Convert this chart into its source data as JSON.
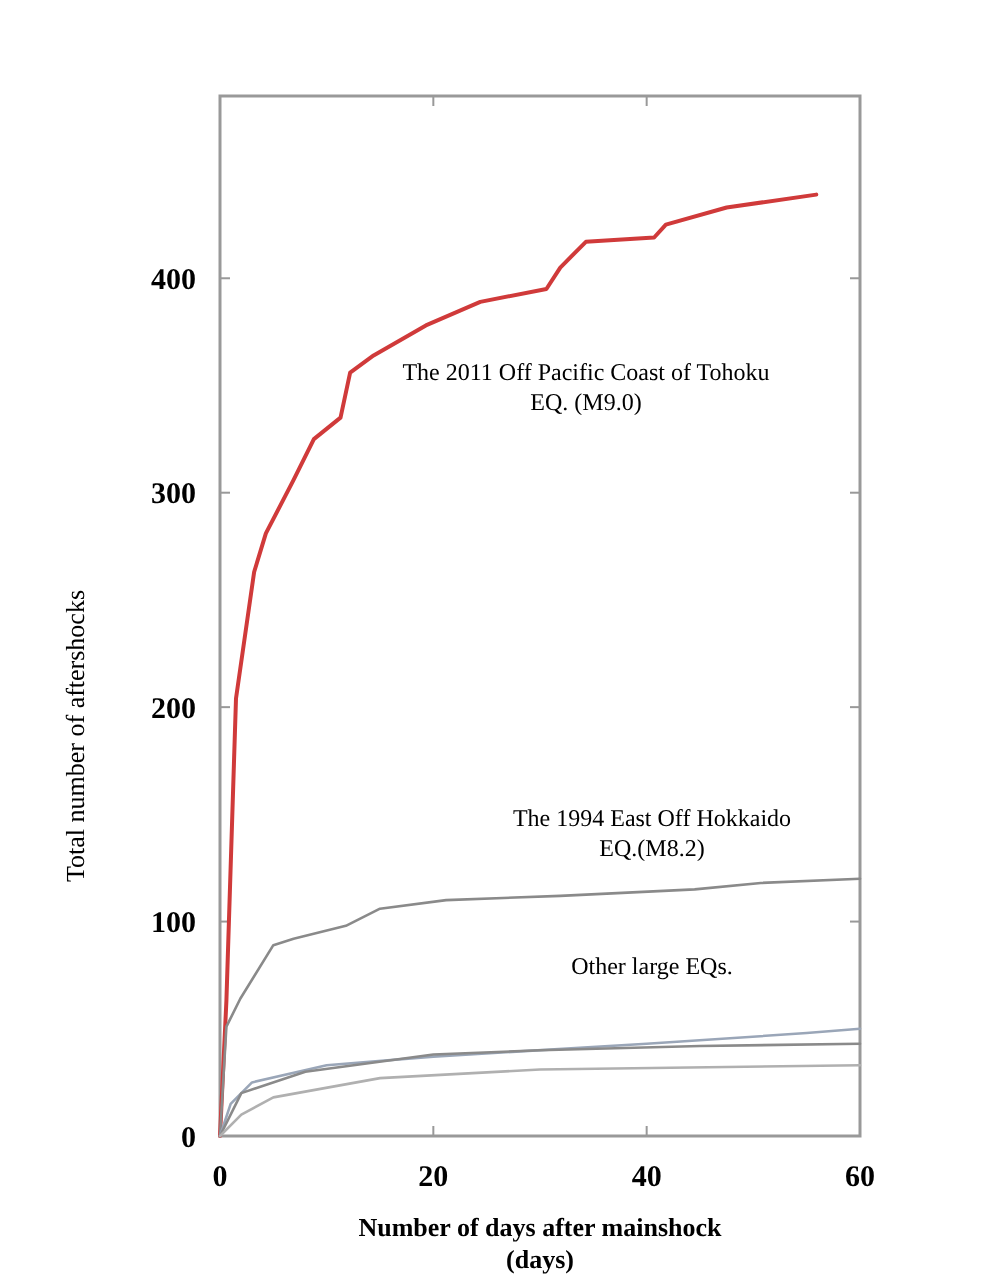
{
  "chart_data": {
    "type": "line",
    "xlabel": "Number of days after mainshock (days)",
    "ylabel": "Total number of aftershocks",
    "xlim": [
      0,
      60
    ],
    "xticks": [
      0,
      20,
      40,
      60
    ],
    "ylim": [
      0,
      485
    ],
    "yticks": [
      0,
      100,
      200,
      300,
      400
    ],
    "grid": false,
    "marker": "none",
    "line_style": "solid",
    "annotations": [
      "Other large EQs."
    ],
    "series": [
      {
        "name": "The 2011 Off Pacific Coast of Tohoku EQ. (M9.0)",
        "color": "#d03a3a",
        "x": [
          0,
          0.6,
          1.5,
          3.2,
          4.3,
          6.9,
          8.8,
          11.3,
          12.2,
          14.4,
          19.3,
          24.4,
          30.6,
          31.9,
          34.3,
          40.7,
          41.8,
          47.5,
          55.9
        ],
        "values": [
          0,
          63,
          204,
          263,
          281,
          306,
          325,
          335,
          356,
          364,
          378,
          389,
          395,
          405,
          417,
          419,
          425,
          433,
          439
        ]
      },
      {
        "name": "The 1994 East Off Hokkaido EQ.(M8.2)",
        "color": "#8a8a8a",
        "x": [
          0,
          0.6,
          1.9,
          5,
          6.9,
          11.8,
          15,
          21.2,
          31.9,
          44.5,
          50.7,
          60
        ],
        "values": [
          0,
          51,
          64,
          89,
          92,
          98,
          106,
          110,
          112,
          115,
          118,
          120
        ]
      },
      {
        "color": "#9aa6b8",
        "x": [
          0,
          1,
          3,
          10,
          20,
          40,
          55,
          60
        ],
        "values": [
          0,
          15,
          25,
          33,
          37,
          43,
          48,
          50
        ]
      },
      {
        "color": "#8a8a8a",
        "x": [
          0,
          2,
          8,
          20,
          30,
          45,
          60
        ],
        "values": [
          0,
          20,
          30,
          38,
          40,
          42,
          43
        ]
      },
      {
        "color": "#b0b0b0",
        "x": [
          0,
          2,
          5,
          15,
          30,
          60
        ],
        "values": [
          0,
          10,
          18,
          27,
          31,
          33
        ]
      }
    ]
  }
}
